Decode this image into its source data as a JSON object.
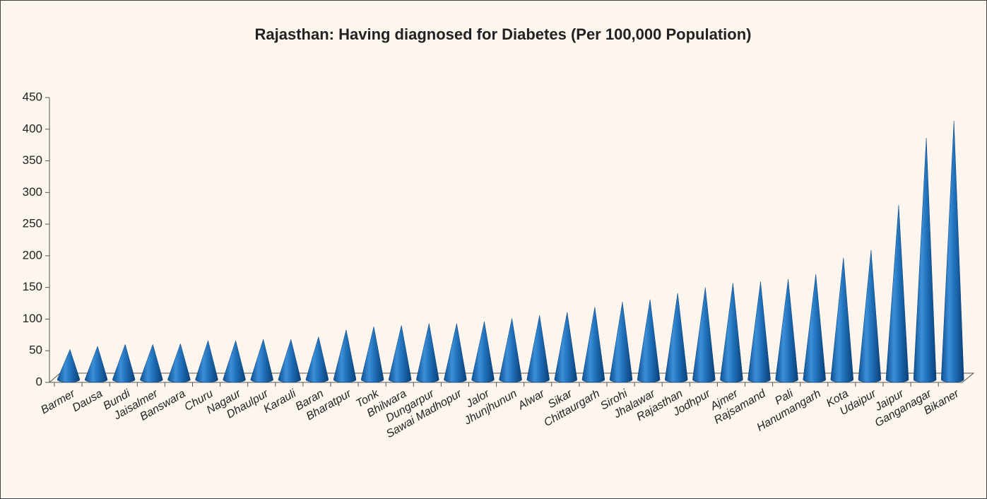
{
  "chart_data": {
    "type": "cone-bar",
    "title": "Rajasthan: Having diagnosed for Diabetes (Per 100,000 Population)",
    "categories": [
      "Barmer",
      "Dausa",
      "Bundi",
      "Jaisalmer",
      "Banswara",
      "Churu",
      "Nagaur",
      "Dhaulpur",
      "Karauli",
      "Baran",
      "Bharatpur",
      "Tonk",
      "Bhilwara",
      "Dungarpur",
      "Sawai Madhopur",
      "Jalor",
      "Jhunjhunun",
      "Alwar",
      "Sikar",
      "Chittaurgarh",
      "Sirohi",
      "Jhalawar",
      "Rajasthan",
      "Jodhpur",
      "Ajmer",
      "Rajsamand",
      "Pali",
      "Hanumangarh",
      "Kota",
      "Udaipur",
      "Jaipur",
      "Ganganagar",
      "Bikaner"
    ],
    "values": [
      52,
      57,
      60,
      60,
      61,
      66,
      66,
      68,
      68,
      72,
      83,
      88,
      90,
      93,
      93,
      96,
      101,
      106,
      111,
      119,
      127,
      131,
      141,
      150,
      157,
      159,
      163,
      171,
      197,
      209,
      280,
      386,
      413
    ],
    "color": "#1f6fb8",
    "ylim": [
      0,
      450
    ],
    "yticks": [
      0,
      50,
      100,
      150,
      200,
      250,
      300,
      350,
      400,
      450
    ]
  }
}
